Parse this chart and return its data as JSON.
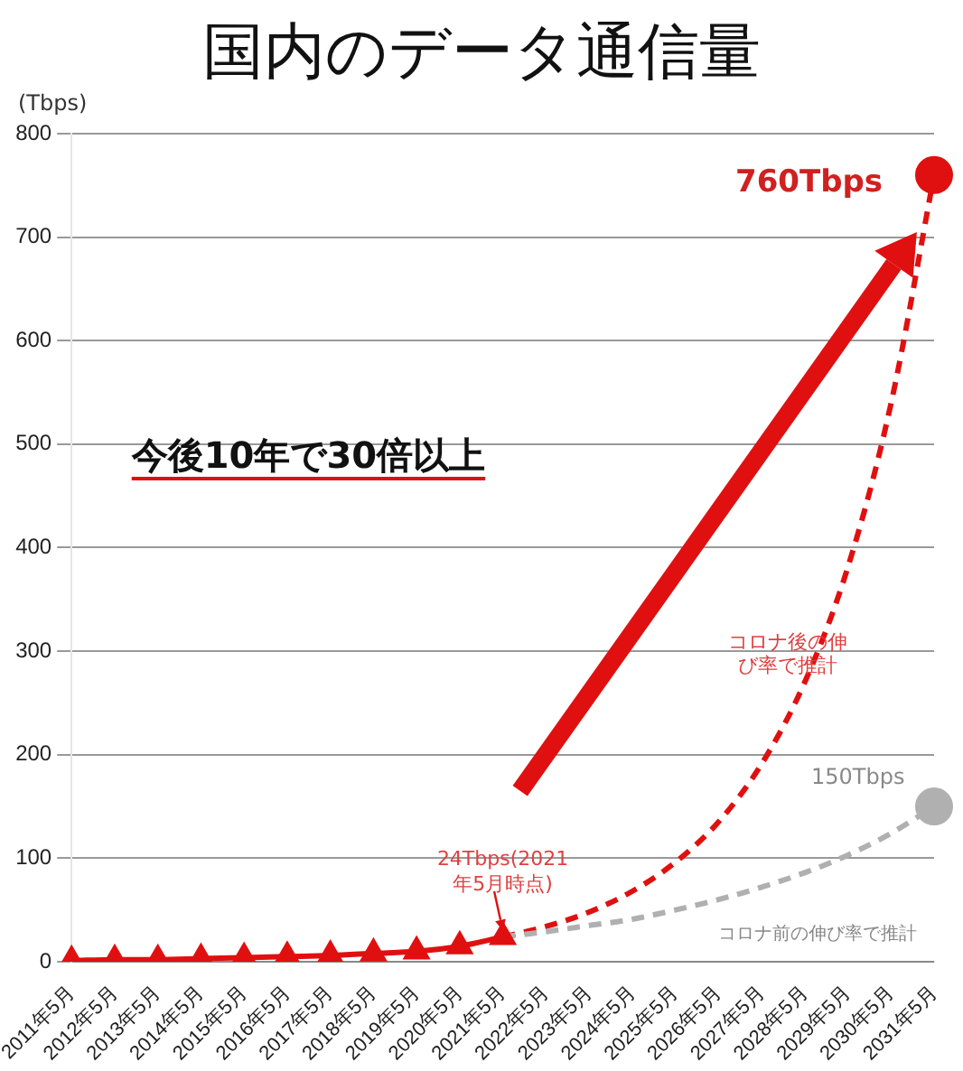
{
  "chart_data": {
    "type": "line",
    "title": "国内のデータ通信量",
    "ylabel": "(Tbps)",
    "categories": [
      "2011年5月",
      "2012年5月",
      "2013年5月",
      "2014年5月",
      "2015年5月",
      "2016年5月",
      "2017年5月",
      "2018年5月",
      "2019年5月",
      "2020年5月",
      "2021年5月",
      "2022年5月",
      "2023年5月",
      "2024年5月",
      "2025年5月",
      "2026年5月",
      "2027年5月",
      "2028年5月",
      "2029年5月",
      "2030年5月",
      "2031年5月"
    ],
    "ylim": [
      0,
      800
    ],
    "yticks": [
      0,
      100,
      200,
      300,
      400,
      500,
      600,
      700,
      800
    ],
    "grid": "y",
    "legend": false,
    "series": [
      {
        "color": "#e01010",
        "marker": "triangle",
        "line_style": "solid",
        "values": [
          1,
          2,
          2,
          3,
          4,
          5,
          6,
          8,
          10,
          15,
          24,
          null,
          null,
          null,
          null,
          null,
          null,
          null,
          null,
          null,
          null
        ]
      },
      {
        "color": "#b0b0b0",
        "marker": "none",
        "line_style": "dashed",
        "values": [
          null,
          null,
          null,
          null,
          null,
          null,
          null,
          null,
          null,
          null,
          24,
          29,
          35,
          41,
          50,
          60,
          72,
          86,
          103,
          124,
          150
        ]
      },
      {
        "color": "#e01010",
        "marker": "none",
        "line_style": "dashed",
        "values": [
          null,
          null,
          null,
          null,
          null,
          null,
          null,
          null,
          null,
          null,
          24,
          34,
          48,
          68,
          96,
          135,
          191,
          270,
          381,
          539,
          760
        ]
      }
    ],
    "annotations": [
      {
        "text": "760Tbps",
        "x": "2031年5月",
        "y": 760
      },
      {
        "text": "150Tbps",
        "x": "2031年5月",
        "y": 150
      },
      "24Tbps(2021年5月時点)",
      "コロナ後の伸び率で推計",
      "コロナ前の伸び率で推計",
      "今後10年で30倍以上"
    ]
  }
}
